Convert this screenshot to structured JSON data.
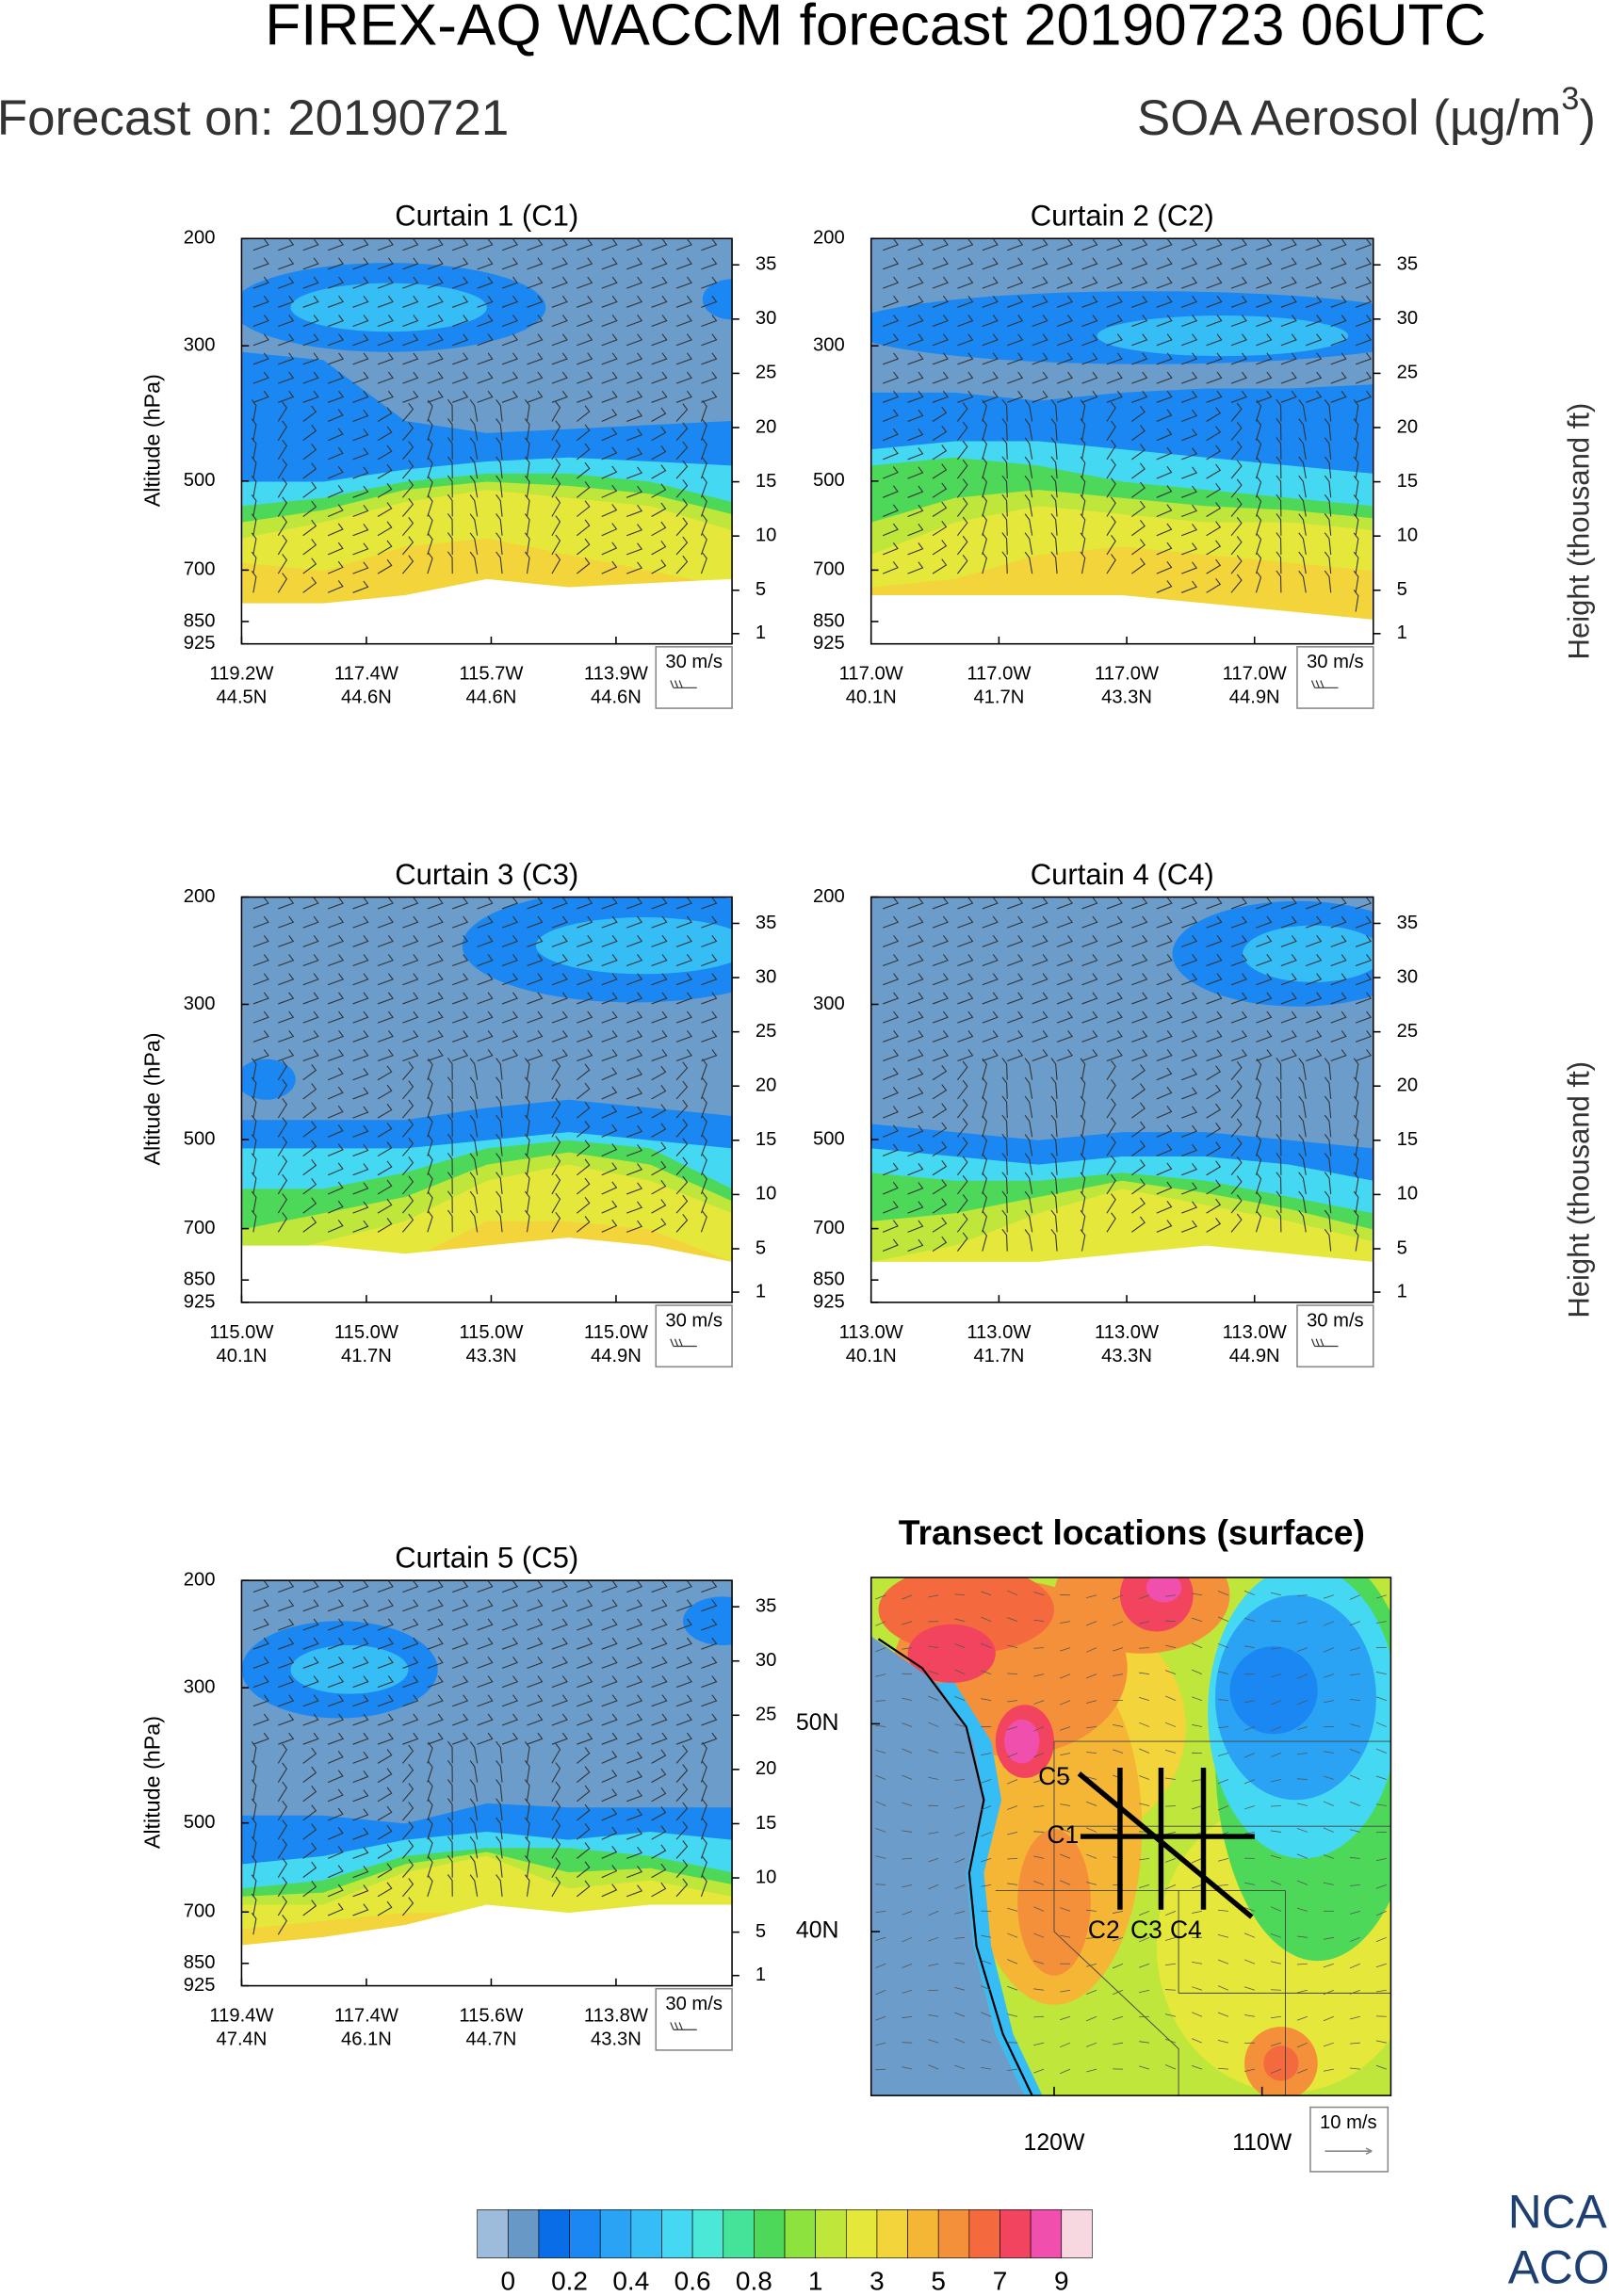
{
  "title": "FIREX-AQ WACCM forecast 20190723 06UTC",
  "forecast_on": "Forecast on: 20190721",
  "units": {
    "base": "SOA Aerosol (µg/m",
    "sup": "3",
    "end": ")"
  },
  "y_label": "Altitude (hPa)",
  "y2_label": "Height (thousand ft)",
  "panels": [
    {
      "title": "Curtain 1 (C1)",
      "pressure_ticks": [
        200,
        300,
        500,
        700,
        850,
        925
      ],
      "height_ticks": [
        35,
        30,
        25,
        20,
        15,
        10,
        5,
        1
      ],
      "x_ticks": [
        {
          "lon": "119.2W",
          "lat": "44.5N"
        },
        {
          "lon": "117.4W",
          "lat": "44.6N"
        },
        {
          "lon": "115.7W",
          "lat": "44.6N"
        },
        {
          "lon": "113.9W",
          "lat": "44.6N"
        }
      ],
      "wind_key": "30 m/s"
    },
    {
      "title": "Curtain 2 (C2)",
      "pressure_ticks": [
        200,
        300,
        500,
        700,
        850,
        925
      ],
      "height_ticks": [
        35,
        30,
        25,
        20,
        15,
        10,
        5,
        1
      ],
      "x_ticks": [
        {
          "lon": "117.0W",
          "lat": "40.1N"
        },
        {
          "lon": "117.0W",
          "lat": "41.7N"
        },
        {
          "lon": "117.0W",
          "lat": "43.3N"
        },
        {
          "lon": "117.0W",
          "lat": "44.9N"
        }
      ],
      "wind_key": "30 m/s"
    },
    {
      "title": "Curtain 3 (C3)",
      "pressure_ticks": [
        200,
        300,
        500,
        700,
        850,
        925
      ],
      "height_ticks": [
        35,
        30,
        25,
        20,
        15,
        10,
        5,
        1
      ],
      "x_ticks": [
        {
          "lon": "115.0W",
          "lat": "40.1N"
        },
        {
          "lon": "115.0W",
          "lat": "41.7N"
        },
        {
          "lon": "115.0W",
          "lat": "43.3N"
        },
        {
          "lon": "115.0W",
          "lat": "44.9N"
        }
      ],
      "wind_key": "30 m/s"
    },
    {
      "title": "Curtain 4 (C4)",
      "pressure_ticks": [
        200,
        300,
        500,
        700,
        850,
        925
      ],
      "height_ticks": [
        35,
        30,
        25,
        20,
        15,
        10,
        5,
        1
      ],
      "x_ticks": [
        {
          "lon": "113.0W",
          "lat": "40.1N"
        },
        {
          "lon": "113.0W",
          "lat": "41.7N"
        },
        {
          "lon": "113.0W",
          "lat": "43.3N"
        },
        {
          "lon": "113.0W",
          "lat": "44.9N"
        }
      ],
      "wind_key": "30 m/s"
    },
    {
      "title": "Curtain 5 (C5)",
      "pressure_ticks": [
        200,
        300,
        500,
        700,
        850,
        925
      ],
      "height_ticks": [
        35,
        30,
        25,
        20,
        15,
        10,
        5,
        1
      ],
      "x_ticks": [
        {
          "lon": "119.4W",
          "lat": "47.4N"
        },
        {
          "lon": "117.4W",
          "lat": "46.1N"
        },
        {
          "lon": "115.6W",
          "lat": "44.7N"
        },
        {
          "lon": "113.8W",
          "lat": "43.3N"
        }
      ],
      "wind_key": "30 m/s"
    }
  ],
  "map": {
    "title": "Transect locations (surface)",
    "lat_labels": [
      "50N",
      "40N"
    ],
    "lon_labels": [
      "120W",
      "110W"
    ],
    "transects": [
      "C1",
      "C2",
      "C3",
      "C4",
      "C5"
    ],
    "wind_key": "10 m/s"
  },
  "colorbar": {
    "labels": [
      0,
      0.2,
      0.4,
      0.6,
      0.8,
      1,
      3,
      5,
      7,
      9
    ],
    "colors": [
      "#9dbcdc",
      "#6898c6",
      "#0a6de8",
      "#1a87f2",
      "#2aa3f5",
      "#36bdf5",
      "#45d8f2",
      "#4be8d8",
      "#45e39a",
      "#4ed85a",
      "#8ee23e",
      "#bfe63a",
      "#e5e83a",
      "#f3d43a",
      "#f5b636",
      "#f5903a",
      "#f46a3e",
      "#f2445e",
      "#f04fae",
      "#f8d8e0"
    ]
  },
  "logo": [
    "NCA",
    "ACO"
  ]
}
